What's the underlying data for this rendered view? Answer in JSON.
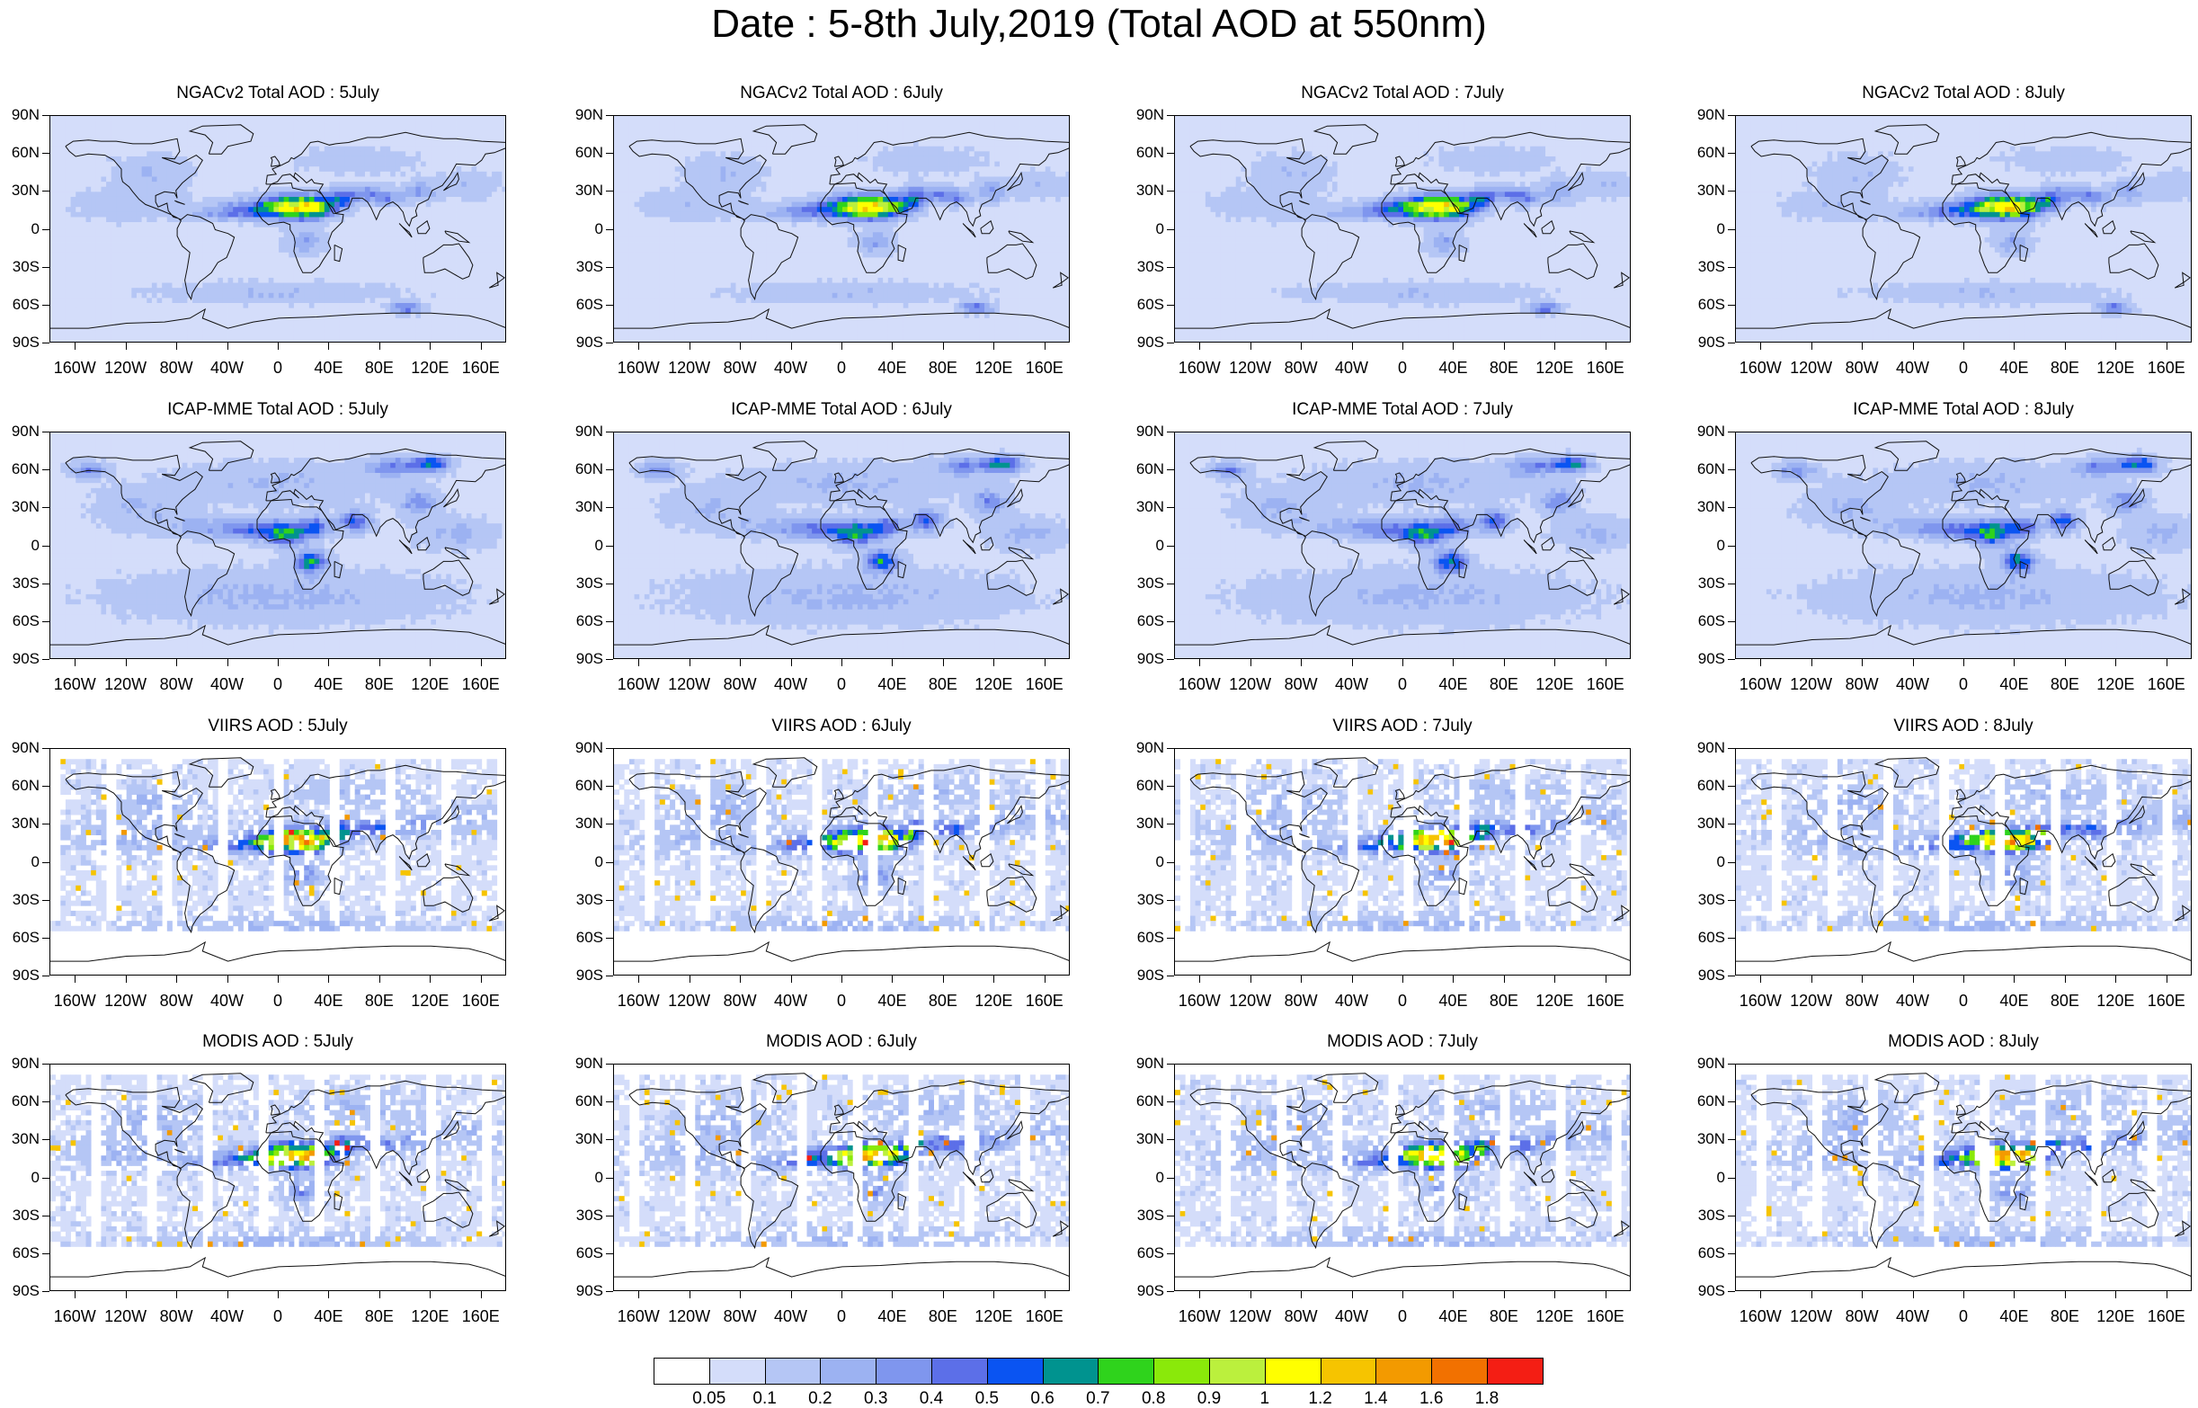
{
  "figure": {
    "title": "Date : 5-8th July,2019 (Total AOD at 550nm)"
  },
  "map_data": {
    "projection": "equirectangular (cylindrical equidistant)",
    "extent": {
      "lon": [
        -180,
        180
      ],
      "lat": [
        -90,
        90
      ]
    },
    "lat_ticks": [
      "90N",
      "60N",
      "30N",
      "0",
      "30S",
      "60S",
      "90S"
    ],
    "lon_ticks": [
      "160W",
      "120W",
      "80W",
      "40W",
      "0",
      "40E",
      "80E",
      "120E",
      "160E"
    ],
    "lon_tick_values": [
      -160,
      -120,
      -80,
      -40,
      0,
      40,
      80,
      120,
      160
    ],
    "lat_tick_values": [
      90,
      60,
      30,
      0,
      -30,
      -60,
      -90
    ],
    "panels": [
      [
        "NGACv2 Total AOD : 5July",
        "NGACv2 Total AOD : 6July",
        "NGACv2 Total AOD : 7July",
        "NGACv2 Total AOD : 8July"
      ],
      [
        "ICAP-MME Total AOD : 5July",
        "ICAP-MME Total AOD : 6July",
        "ICAP-MME Total AOD : 7July",
        "ICAP-MME Total AOD : 8July"
      ],
      [
        "VIIRS AOD : 5July",
        "VIIRS AOD : 6July",
        "VIIRS AOD : 7July",
        "VIIRS AOD : 8July"
      ],
      [
        "MODIS AOD : 5July",
        "MODIS AOD : 6July",
        "MODIS AOD : 7July",
        "MODIS AOD : 8July"
      ]
    ],
    "colorbar": {
      "labels": [
        "0.05",
        "0.1",
        "0.2",
        "0.3",
        "0.4",
        "0.5",
        "0.6",
        "0.7",
        "0.8",
        "0.9",
        "1",
        "1.2",
        "1.4",
        "1.6",
        "1.8"
      ],
      "colors": [
        "#ffffff",
        "#d4ddfa",
        "#b5c6f5",
        "#9cb2f2",
        "#7f96ee",
        "#5c6fe8",
        "#0a54f2",
        "#00938f",
        "#2fd31c",
        "#8ae90a",
        "#bbf03d",
        "#ffff00",
        "#f6c400",
        "#f39a00",
        "#f27100",
        "#f41e14"
      ]
    }
  }
}
